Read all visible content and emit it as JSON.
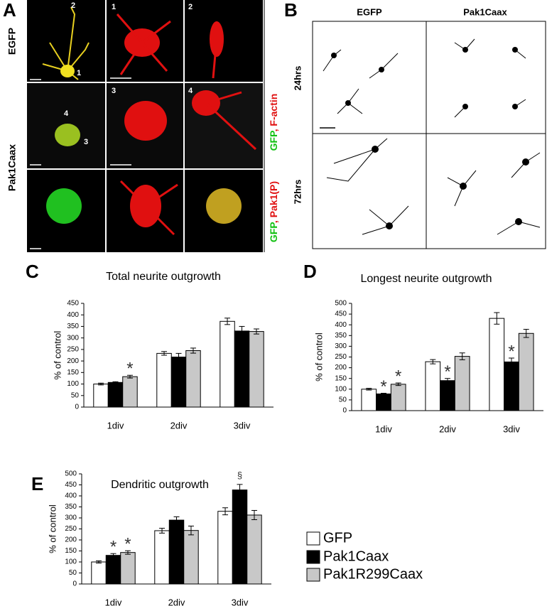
{
  "panel_letters": {
    "a": "A",
    "b": "B",
    "c": "C",
    "d": "D",
    "e": "E"
  },
  "panel_a": {
    "row_labels": [
      "EGFP",
      "Pak1Caax"
    ],
    "stain_top": [
      "GFP",
      ", F-actin"
    ],
    "stain_bottom": [
      "GFP",
      ", Pak1(P)"
    ],
    "cell_numbers": [
      "2",
      "1",
      "1",
      "2",
      "4",
      "3",
      "3",
      "4"
    ]
  },
  "panel_b": {
    "column_labels": [
      "EGFP",
      "Pak1Caax"
    ],
    "row_labels": [
      "24hrs",
      "72hrs"
    ]
  },
  "legend": [
    {
      "name": "GFP",
      "color": "#ffffff"
    },
    {
      "name": "Pak1Caax",
      "color": "#000000"
    },
    {
      "name": "Pak1R299Caax",
      "color": "#c8c8c8"
    }
  ],
  "chart_data": [
    {
      "type": "bar",
      "title": "Total neurite outgrowth",
      "ylabel": "% of control",
      "categories": [
        "1div",
        "2div",
        "3div"
      ],
      "ylim": [
        0,
        450
      ],
      "yticks": [
        0,
        50,
        100,
        150,
        200,
        250,
        300,
        350,
        400,
        450
      ],
      "series": [
        {
          "values": [
            100,
            233,
            372
          ],
          "errors": [
            4,
            8,
            14
          ]
        },
        {
          "values": [
            107,
            217,
            330
          ],
          "errors": [
            3,
            16,
            20
          ]
        },
        {
          "values": [
            132,
            245,
            328
          ],
          "errors": [
            6,
            11,
            11
          ],
          "annotations": [
            "*",
            null,
            null
          ]
        }
      ]
    },
    {
      "type": "bar",
      "title": "Longest neurite outgrowth",
      "ylabel": "% of control",
      "categories": [
        "1div",
        "2div",
        "3div"
      ],
      "ylim": [
        0,
        500
      ],
      "yticks": [
        0,
        50,
        100,
        150,
        200,
        250,
        300,
        350,
        400,
        450,
        500
      ],
      "series": [
        {
          "values": [
            100,
            228,
            430
          ],
          "errors": [
            4,
            10,
            27
          ]
        },
        {
          "values": [
            78,
            140,
            227
          ],
          "errors": [
            3,
            10,
            18
          ],
          "annotations": [
            "*",
            "*",
            "*"
          ]
        },
        {
          "values": [
            123,
            253,
            360
          ],
          "errors": [
            6,
            16,
            19
          ],
          "annotations": [
            "*",
            null,
            null
          ]
        }
      ]
    },
    {
      "type": "bar",
      "title": "Dendritic outgrowth",
      "ylabel": "% of control",
      "categories": [
        "1div",
        "2div",
        "3div"
      ],
      "ylim": [
        0,
        500
      ],
      "yticks": [
        0,
        50,
        100,
        150,
        200,
        250,
        300,
        350,
        400,
        450,
        500
      ],
      "series": [
        {
          "values": [
            100,
            242,
            330
          ],
          "errors": [
            5,
            11,
            16
          ]
        },
        {
          "values": [
            130,
            290,
            427
          ],
          "errors": [
            8,
            15,
            25
          ],
          "annotations": [
            "*",
            null,
            "§"
          ]
        },
        {
          "values": [
            143,
            243,
            313
          ],
          "errors": [
            8,
            20,
            21
          ],
          "annotations": [
            "*",
            null,
            null
          ]
        }
      ]
    }
  ]
}
